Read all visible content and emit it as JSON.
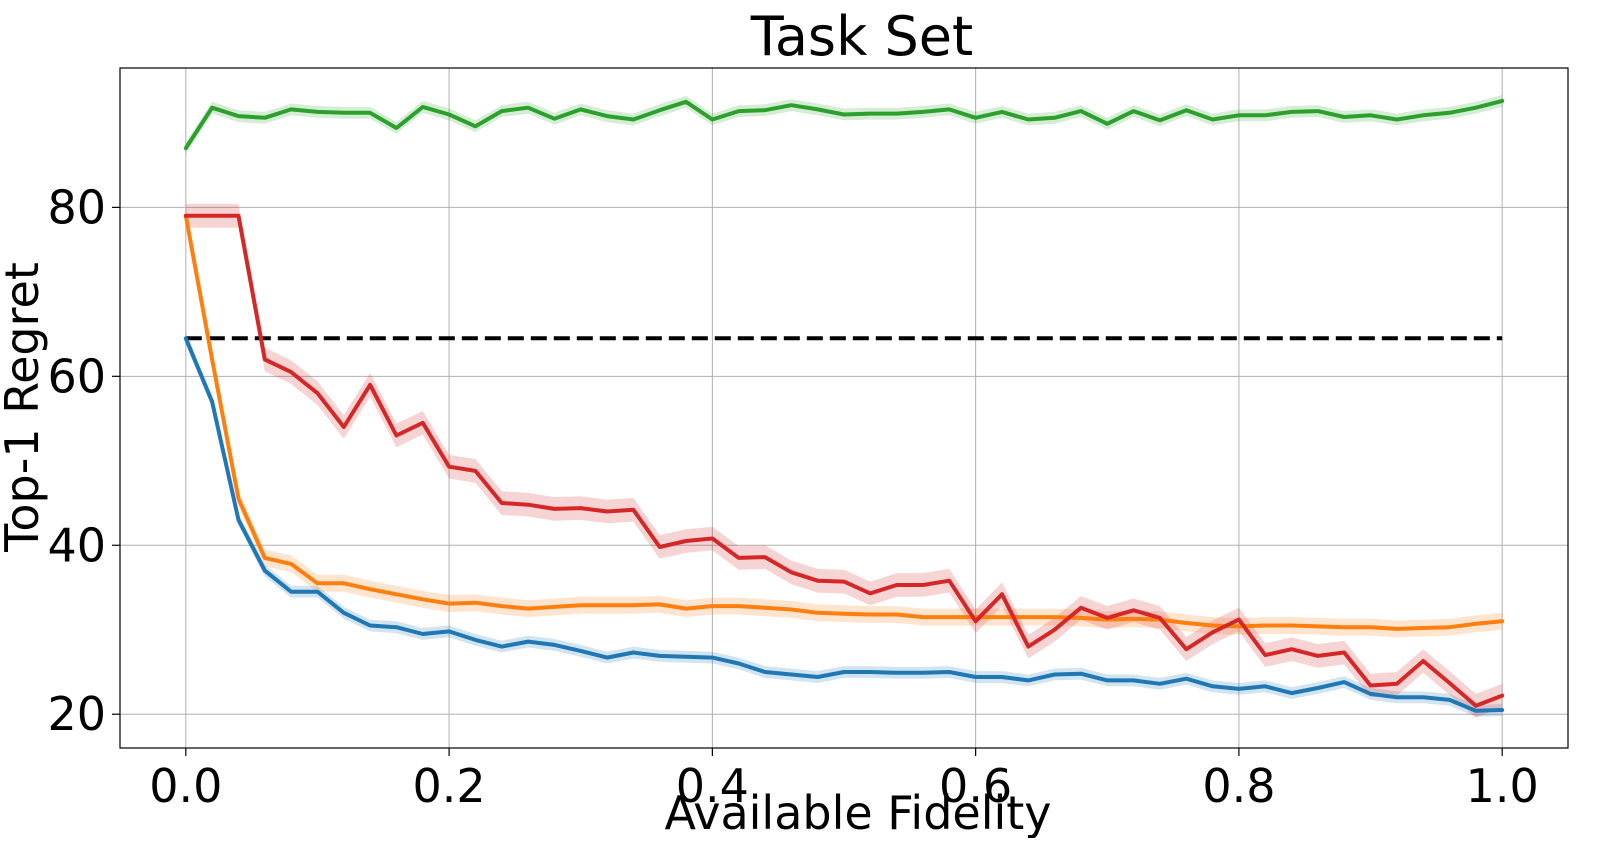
{
  "chart_data": {
    "type": "line",
    "title": "Task Set",
    "xlabel": "Available Fidelity",
    "ylabel": "Top-1 Regret",
    "xlim": [
      -0.05,
      1.05
    ],
    "ylim": [
      16,
      96.5
    ],
    "xticks": [
      0.0,
      0.2,
      0.4,
      0.6,
      0.8,
      1.0
    ],
    "xtick_labels": [
      "0.0",
      "0.2",
      "0.4",
      "0.6",
      "0.8",
      "1.0"
    ],
    "yticks": [
      20,
      40,
      60,
      80
    ],
    "ytick_labels": [
      "20",
      "40",
      "60",
      "80"
    ],
    "grid": true,
    "x": [
      0.0,
      0.02,
      0.04,
      0.06,
      0.08,
      0.1,
      0.12,
      0.14,
      0.16,
      0.18,
      0.2,
      0.22,
      0.24,
      0.26,
      0.28,
      0.3,
      0.32,
      0.34,
      0.36,
      0.38,
      0.4,
      0.42,
      0.44,
      0.46,
      0.48,
      0.5,
      0.52,
      0.54,
      0.56,
      0.58,
      0.6,
      0.62,
      0.64,
      0.66,
      0.68,
      0.7,
      0.72,
      0.74,
      0.76,
      0.78,
      0.8,
      0.82,
      0.84,
      0.86,
      0.88,
      0.9,
      0.92,
      0.94,
      0.96,
      0.98,
      1.0
    ],
    "series": [
      {
        "color": "#1f77b4",
        "band": 0.7,
        "values": [
          64.5,
          57.0,
          43.0,
          37.0,
          34.5,
          34.5,
          32.0,
          30.5,
          30.3,
          29.5,
          29.8,
          28.8,
          28.0,
          28.6,
          28.2,
          27.5,
          26.7,
          27.3,
          26.9,
          26.8,
          26.7,
          26.0,
          25.0,
          24.7,
          24.4,
          25.0,
          25.0,
          24.9,
          24.9,
          25.0,
          24.4,
          24.4,
          24.0,
          24.7,
          24.8,
          24.0,
          24.0,
          23.6,
          24.2,
          23.3,
          23.0,
          23.3,
          22.5,
          23.1,
          23.8,
          22.4,
          22.0,
          22.0,
          21.7,
          20.4,
          20.5
        ]
      },
      {
        "color": "#ff7f0e",
        "band": 1.0,
        "values": [
          79.0,
          62.0,
          45.5,
          38.5,
          37.8,
          35.5,
          35.5,
          34.8,
          34.2,
          33.6,
          33.1,
          33.2,
          32.8,
          32.5,
          32.7,
          32.9,
          32.9,
          32.9,
          33.0,
          32.5,
          32.8,
          32.8,
          32.6,
          32.4,
          32.0,
          31.9,
          31.8,
          31.8,
          31.5,
          31.5,
          31.5,
          31.5,
          31.5,
          31.5,
          31.4,
          31.2,
          31.3,
          31.2,
          30.8,
          30.5,
          30.4,
          30.5,
          30.5,
          30.4,
          30.3,
          30.3,
          30.1,
          30.2,
          30.3,
          30.7,
          31.0
        ]
      },
      {
        "color": "#2ca02c",
        "band": 0.7,
        "values": [
          87.0,
          91.8,
          90.8,
          90.6,
          91.6,
          91.3,
          91.2,
          91.2,
          89.4,
          91.9,
          91.0,
          89.6,
          91.4,
          91.8,
          90.5,
          91.6,
          90.8,
          90.4,
          91.5,
          92.5,
          90.4,
          91.4,
          91.5,
          92.1,
          91.6,
          91.0,
          91.1,
          91.1,
          91.3,
          91.6,
          90.6,
          91.3,
          90.4,
          90.6,
          91.4,
          89.9,
          91.4,
          90.3,
          91.5,
          90.4,
          90.9,
          90.9,
          91.3,
          91.4,
          90.7,
          90.9,
          90.4,
          90.9,
          91.2,
          91.8,
          92.6
        ]
      },
      {
        "color": "#d62728",
        "band": 1.4,
        "values": [
          79.0,
          79.0,
          79.0,
          62.0,
          60.5,
          58.0,
          54.0,
          59.0,
          53.0,
          54.5,
          49.3,
          48.8,
          45.0,
          44.8,
          44.3,
          44.4,
          44.0,
          44.2,
          39.8,
          40.5,
          40.8,
          38.5,
          38.6,
          36.8,
          35.8,
          35.7,
          34.3,
          35.3,
          35.3,
          35.8,
          31.0,
          34.2,
          28.0,
          30.0,
          32.6,
          31.4,
          32.3,
          31.4,
          27.7,
          29.7,
          31.2,
          27.0,
          27.7,
          26.9,
          27.3,
          23.4,
          23.6,
          26.3,
          23.7,
          21.0,
          22.2
        ]
      }
    ],
    "reference_line": {
      "color": "#000000",
      "style": "dashed",
      "value": 64.5,
      "x_range": [
        0.0,
        1.0
      ]
    }
  }
}
